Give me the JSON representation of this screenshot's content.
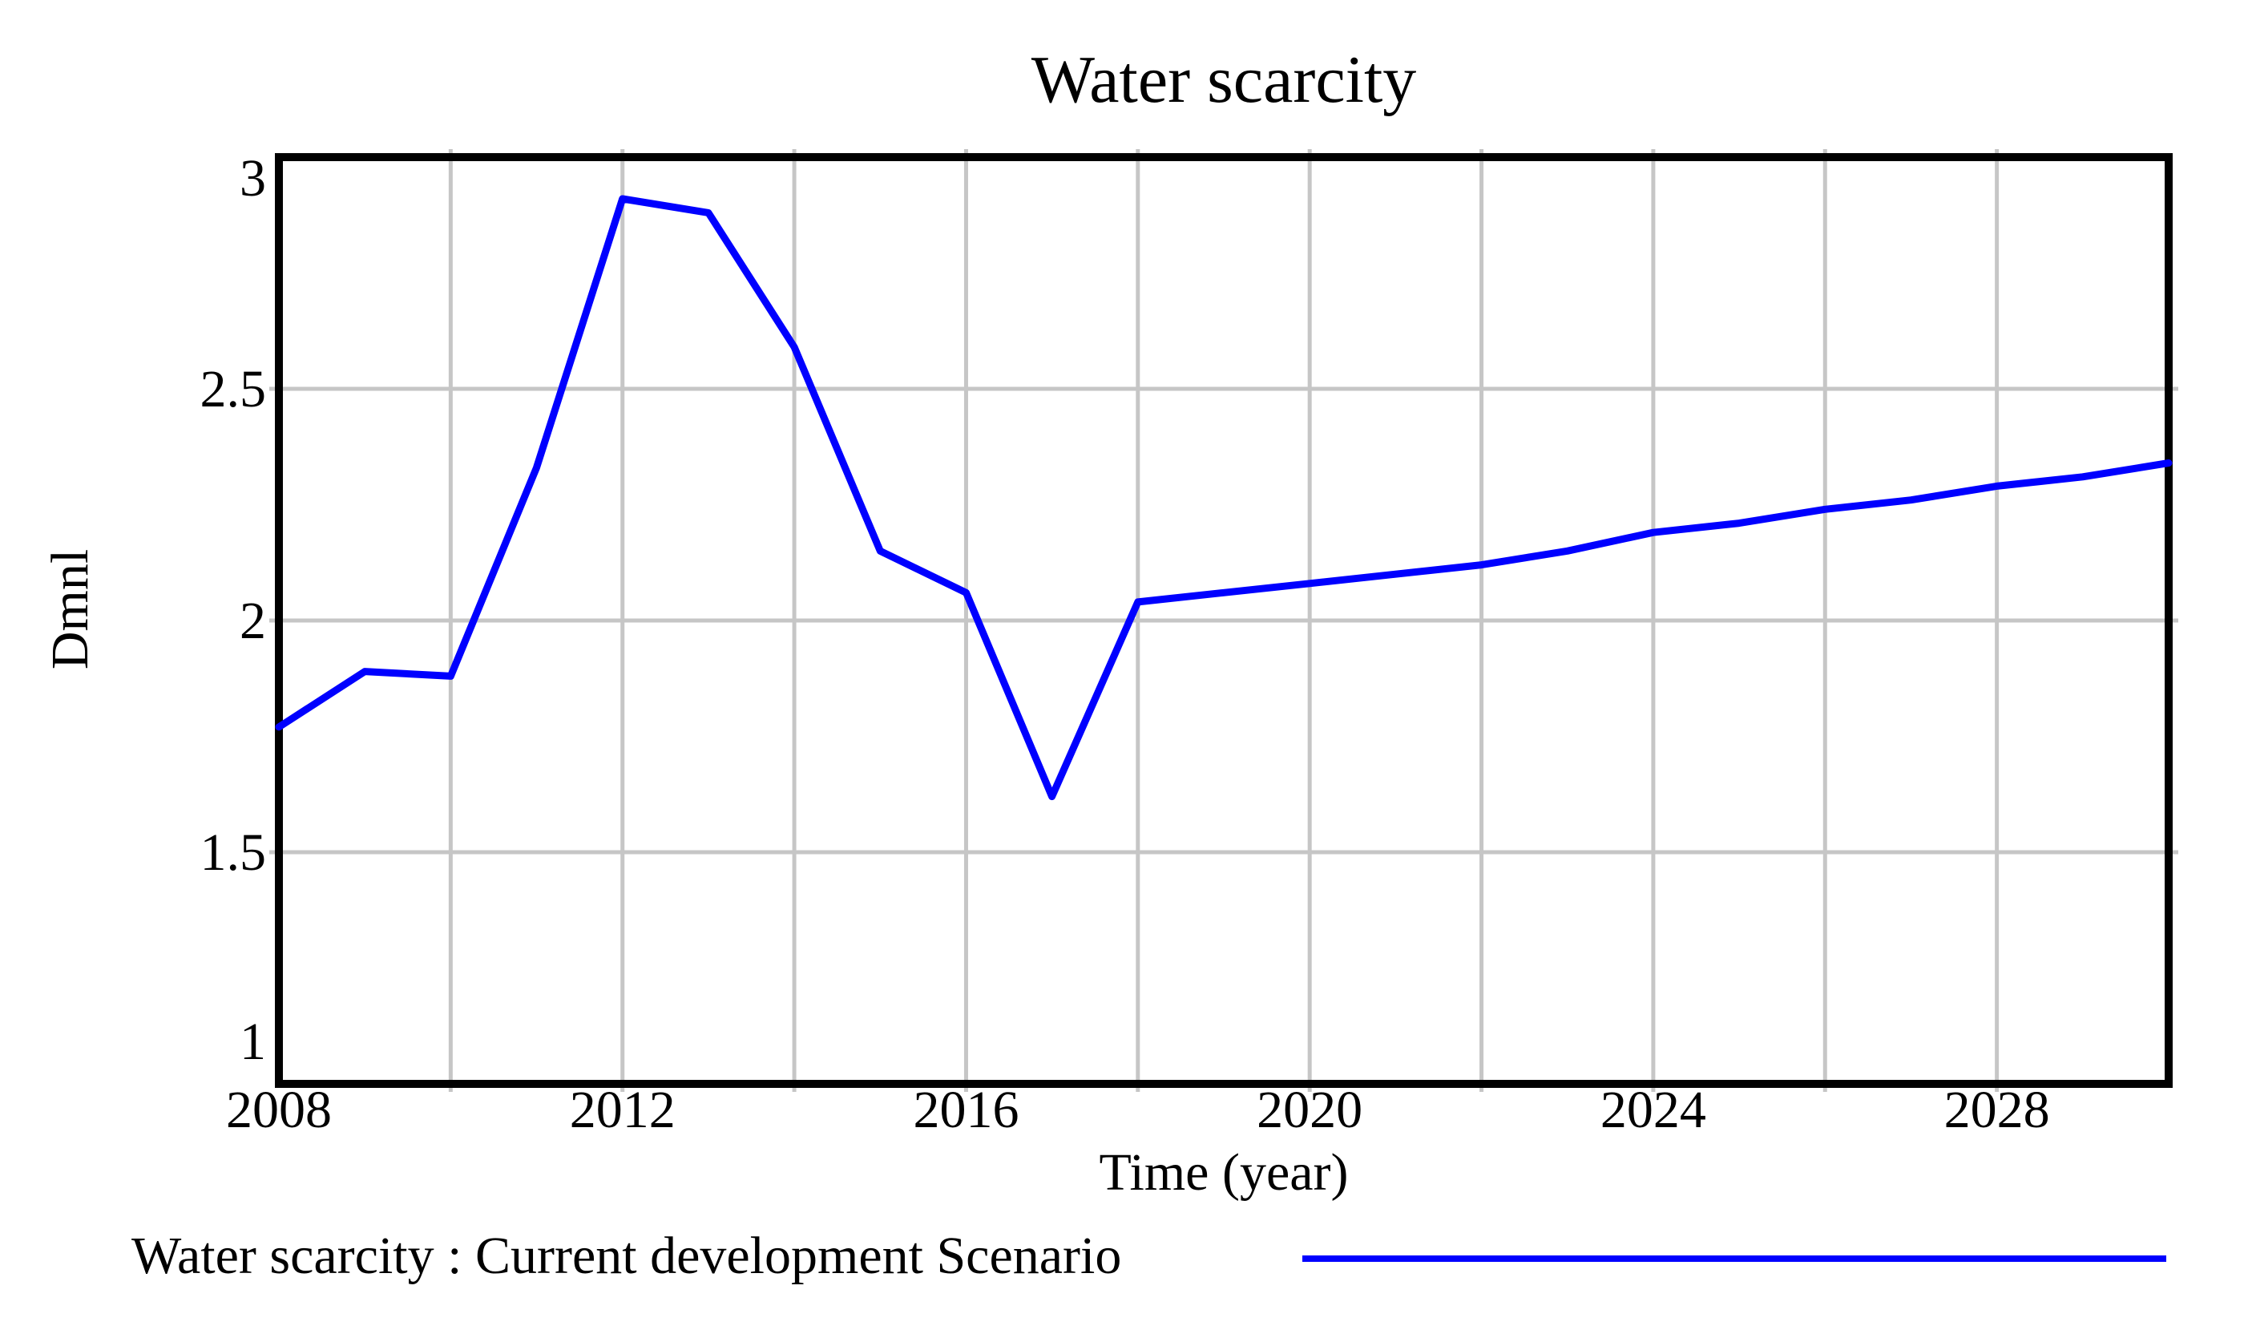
{
  "chart": {
    "colors": {
      "line": "#0000ff",
      "grid": "#c6c6c6",
      "frame": "#000000",
      "text": "#000000",
      "background": "#ffffff"
    }
  },
  "chart_data": {
    "type": "line",
    "title": "Water scarcity",
    "xlabel": "Time (year)",
    "ylabel": "Dmnl",
    "xlim": [
      2008,
      2030
    ],
    "ylim": [
      1,
      3
    ],
    "xticks": [
      2008,
      2012,
      2016,
      2020,
      2024,
      2028
    ],
    "yticks": [
      1,
      1.5,
      2,
      2.5,
      3
    ],
    "grid": true,
    "grid_x_step_years": 2,
    "legend_position": "bottom-left",
    "series": [
      {
        "name": "Water scarcity : Current development Scenario",
        "color": "#0000ff",
        "x": [
          2008,
          2009,
          2010,
          2011,
          2012,
          2013,
          2014,
          2015,
          2016,
          2017,
          2018,
          2019,
          2020,
          2021,
          2022,
          2023,
          2024,
          2025,
          2026,
          2027,
          2028,
          2029,
          2030
        ],
        "y": [
          1.77,
          1.89,
          1.88,
          2.33,
          2.91,
          2.88,
          2.59,
          2.15,
          2.06,
          1.62,
          2.04,
          2.06,
          2.08,
          2.1,
          2.12,
          2.15,
          2.19,
          2.21,
          2.24,
          2.26,
          2.29,
          2.31,
          2.34
        ]
      }
    ]
  }
}
